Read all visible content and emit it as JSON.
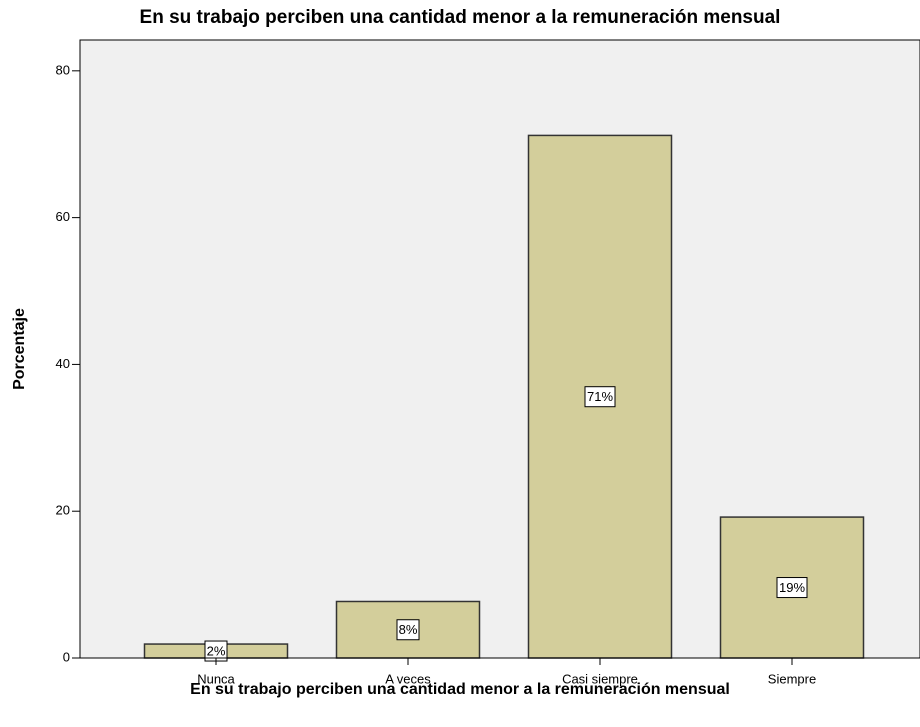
{
  "chart_data": {
    "type": "bar",
    "title": "En su trabajo perciben una cantidad menor a la remuneración mensual",
    "x_label": "En su trabajo perciben una cantidad menor a la remuneración mensual",
    "y_label": "Porcentaje",
    "categories": [
      "Nunca",
      "A veces",
      "Casi siempre",
      "Siempre"
    ],
    "values": [
      1.9,
      7.7,
      71.2,
      19.2
    ],
    "value_labels": [
      "2%",
      "8%",
      "71%",
      "19%"
    ],
    "color": "#d3ce9b",
    "ylim": [
      0,
      84.2
    ],
    "yticks": [
      0,
      20,
      40,
      60,
      80
    ],
    "grid": false
  }
}
